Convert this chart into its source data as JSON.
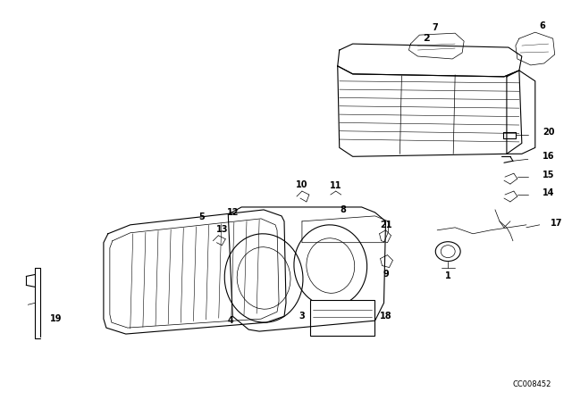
{
  "bg_color": "#ffffff",
  "fig_width": 6.4,
  "fig_height": 4.48,
  "watermark": "CC008452",
  "line_color": "#000000",
  "text_color": "#000000",
  "lw_main": 0.8,
  "lw_thin": 0.5
}
